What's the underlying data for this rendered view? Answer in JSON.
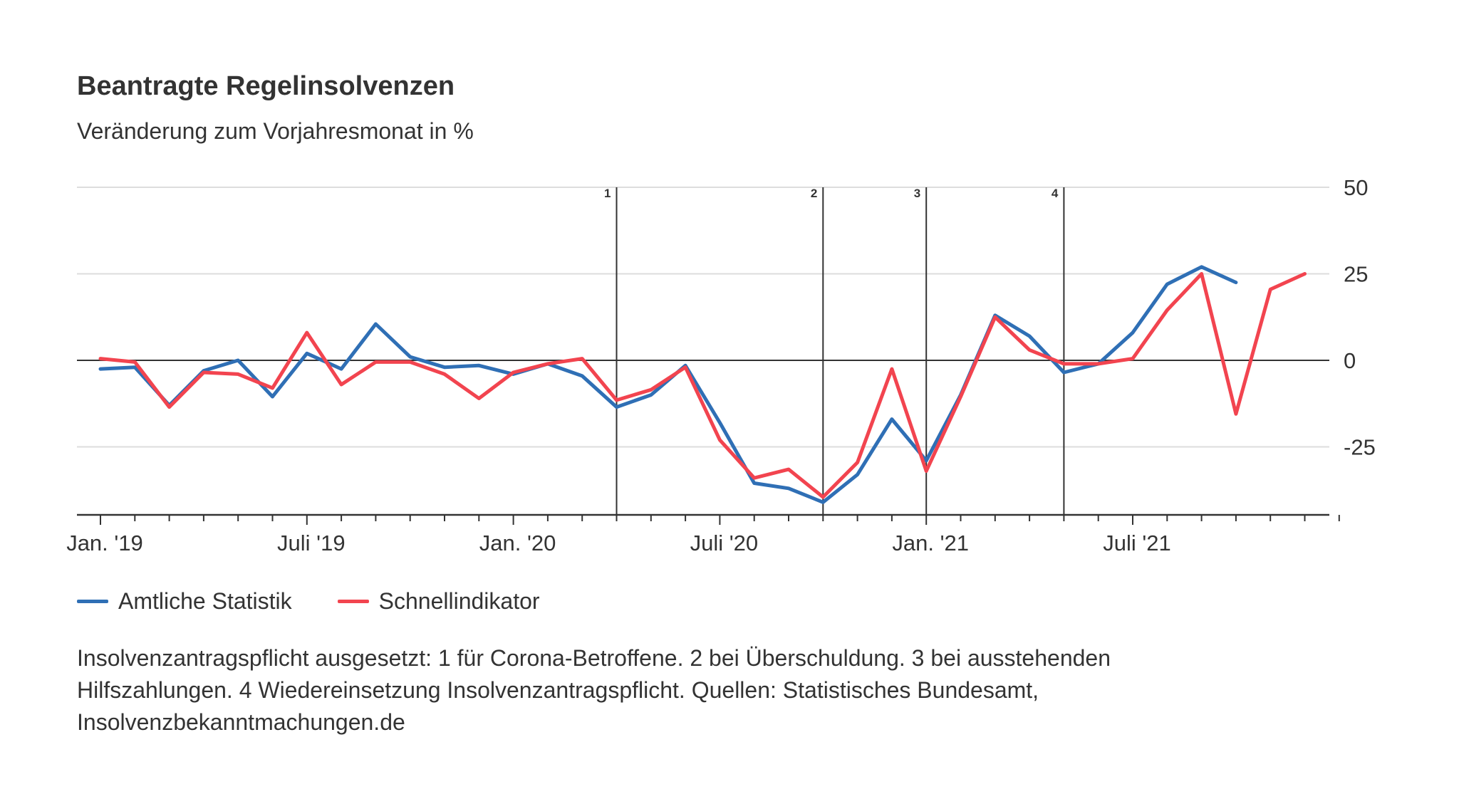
{
  "title": "Beantragte Regelinsolvenzen",
  "subtitle": "Veränderung zum Vorjahresmonat in %",
  "footnote": "Insolvenzantragspflicht ausgesetzt: 1 für Corona-Betroffene. 2 bei Überschuldung. 3 bei ausstehenden Hilfszahlungen. 4 Wiedereinsetzung Insolvenzantragspflicht. Quellen: Statistisches Bundesamt, Insolvenzbekanntmachungen.de",
  "colors": {
    "amtlich": "#2f6fb5",
    "schnell": "#f2444f",
    "grid": "#dddddd",
    "axis": "#333333"
  },
  "chart_data": {
    "type": "line",
    "x": [
      "2019-01",
      "2019-02",
      "2019-03",
      "2019-04",
      "2019-05",
      "2019-06",
      "2019-07",
      "2019-08",
      "2019-09",
      "2019-10",
      "2019-11",
      "2019-12",
      "2020-01",
      "2020-02",
      "2020-03",
      "2020-04",
      "2020-05",
      "2020-06",
      "2020-07",
      "2020-08",
      "2020-09",
      "2020-10",
      "2020-11",
      "2020-12",
      "2021-01",
      "2021-02",
      "2021-03",
      "2021-04",
      "2021-05",
      "2021-06",
      "2021-07",
      "2021-08",
      "2021-09",
      "2021-10",
      "2021-11",
      "2021-12",
      "2022-01",
      "2022-02"
    ],
    "x_tick_labels": [
      "Jan. '19",
      "Juli '19",
      "Jan. '20",
      "Juli '20",
      "Jan. '21",
      "Juli '21"
    ],
    "x_tick_values": [
      "2019-01",
      "2019-07",
      "2020-01",
      "2020-07",
      "2021-01",
      "2021-07"
    ],
    "y_tick_labels": [
      "50",
      "25",
      "0",
      "-25"
    ],
    "y_tick_values": [
      50,
      25,
      0,
      -25
    ],
    "ylim": [
      -45,
      50
    ],
    "grid": true,
    "legend_position": "bottom-left",
    "series": [
      {
        "name": "Amtliche Statistik",
        "color": "#2f6fb5",
        "values": [
          -2.5,
          -2,
          -13,
          -3,
          0,
          -10.5,
          2,
          -2.5,
          10.5,
          1,
          -2,
          -1.5,
          -4,
          -1,
          -4.5,
          -13.5,
          -10,
          -1.5,
          -18,
          -35.5,
          -37,
          -41,
          -33,
          -17,
          -29,
          -10,
          13,
          7,
          -3.5,
          -1,
          8,
          22,
          27,
          22.5,
          null,
          null,
          null,
          null
        ]
      },
      {
        "name": "Schnellindikator",
        "color": "#f2444f",
        "values": [
          0.5,
          -0.5,
          -13.5,
          -3.5,
          -4,
          -8,
          8,
          -7,
          -0.5,
          -0.5,
          -4,
          -11,
          -3.5,
          -1,
          0.5,
          -11.5,
          -8.5,
          -2,
          -23,
          -34,
          -31.5,
          -39.5,
          -29.5,
          -2.5,
          -32,
          -10.5,
          12.5,
          3,
          -1,
          -1,
          0.5,
          14.5,
          25,
          -15.5,
          20.5,
          25,
          null,
          null
        ]
      }
    ],
    "annotations": [
      {
        "label": "1",
        "x": "2020-04"
      },
      {
        "label": "2",
        "x": "2020-10"
      },
      {
        "label": "3",
        "x": "2021-01"
      },
      {
        "label": "4",
        "x": "2021-05"
      }
    ]
  }
}
